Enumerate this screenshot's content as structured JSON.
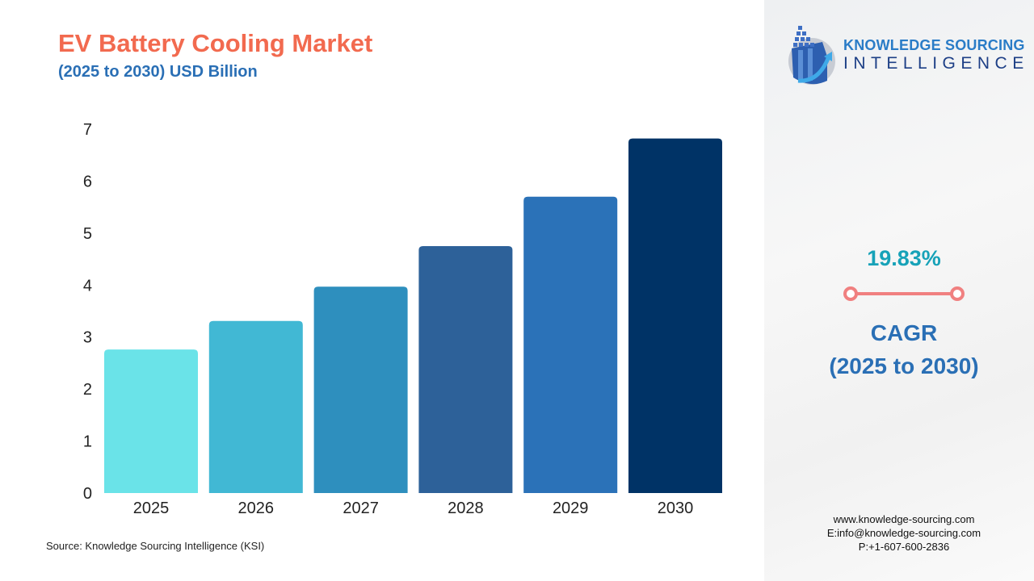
{
  "header": {
    "title": "EV Battery Cooling Market",
    "subtitle": "(2025 to 2030) USD Billion"
  },
  "chart_data": {
    "type": "bar",
    "title": "EV Battery Cooling Market",
    "subtitle": "(2025 to 2030) USD Billion",
    "categories": [
      "2025",
      "2026",
      "2027",
      "2028",
      "2029",
      "2030"
    ],
    "values": [
      2.76,
      3.31,
      3.97,
      4.75,
      5.7,
      6.82
    ],
    "colors": [
      "#6ae3e8",
      "#41b8d4",
      "#2e8fbe",
      "#2d6199",
      "#2b72b8",
      "#003366"
    ],
    "ylim": [
      0,
      7
    ],
    "yticks": [
      0,
      1,
      2,
      3,
      4,
      5,
      6,
      7
    ],
    "grid": false,
    "xlabel": "",
    "ylabel": ""
  },
  "source": "Source: Knowledge Sourcing Intelligence (KSI)",
  "sidebar": {
    "logo": {
      "line1": "KNOWLEDGE SOURCING",
      "line2": "INTELLIGENCE"
    },
    "cagr_value": "19.83%",
    "cagr_label": "CAGR",
    "cagr_period": "(2025 to 2030)",
    "website": "www.knowledge-sourcing.com",
    "email": "E:info@knowledge-sourcing.com",
    "phone": "P:+1-607-600-2836"
  }
}
